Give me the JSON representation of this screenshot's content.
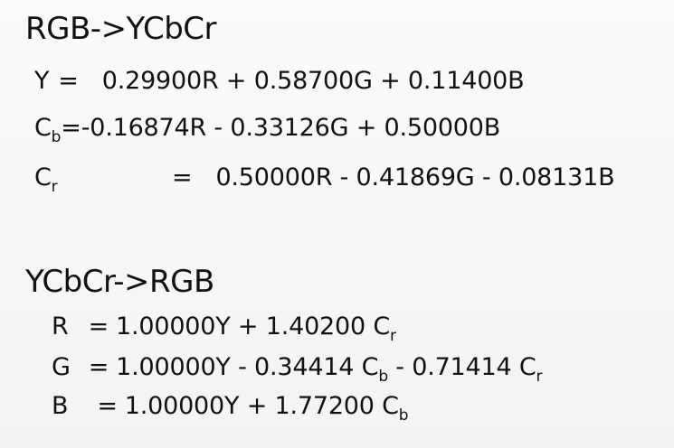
{
  "section1": {
    "heading": "RGB->YCbCr",
    "y_line": {
      "lhs": "Y",
      "eq": "=",
      "rhs": "0.29900R + 0.58700G + 0.11400B"
    },
    "cb_line": {
      "lhs_main": "C",
      "lhs_sub": "b",
      "eq": "=",
      "rhs": "-0.16874R - 0.33126G + 0.50000B"
    },
    "cr_line": {
      "lhs_main": "C",
      "lhs_sub": "r",
      "eq": "=",
      "rhs": "0.50000R - 0.41869G - 0.08131B"
    }
  },
  "section2": {
    "heading": "YCbCr->RGB",
    "r_line": {
      "lhs": "R",
      "eq": "=",
      "term1": "1.00000Y + 1.40200 C",
      "term1_sub": "r"
    },
    "g_line": {
      "lhs": "G",
      "eq": "=",
      "term1": "1.00000Y - 0.34414 C",
      "term1_sub": "b",
      "term2": " - 0.71414 C",
      "term2_sub": "r"
    },
    "b_line": {
      "lhs": "B",
      "eq": "=",
      "term1": "1.00000Y + 1.77200 C",
      "term1_sub": "b"
    }
  }
}
